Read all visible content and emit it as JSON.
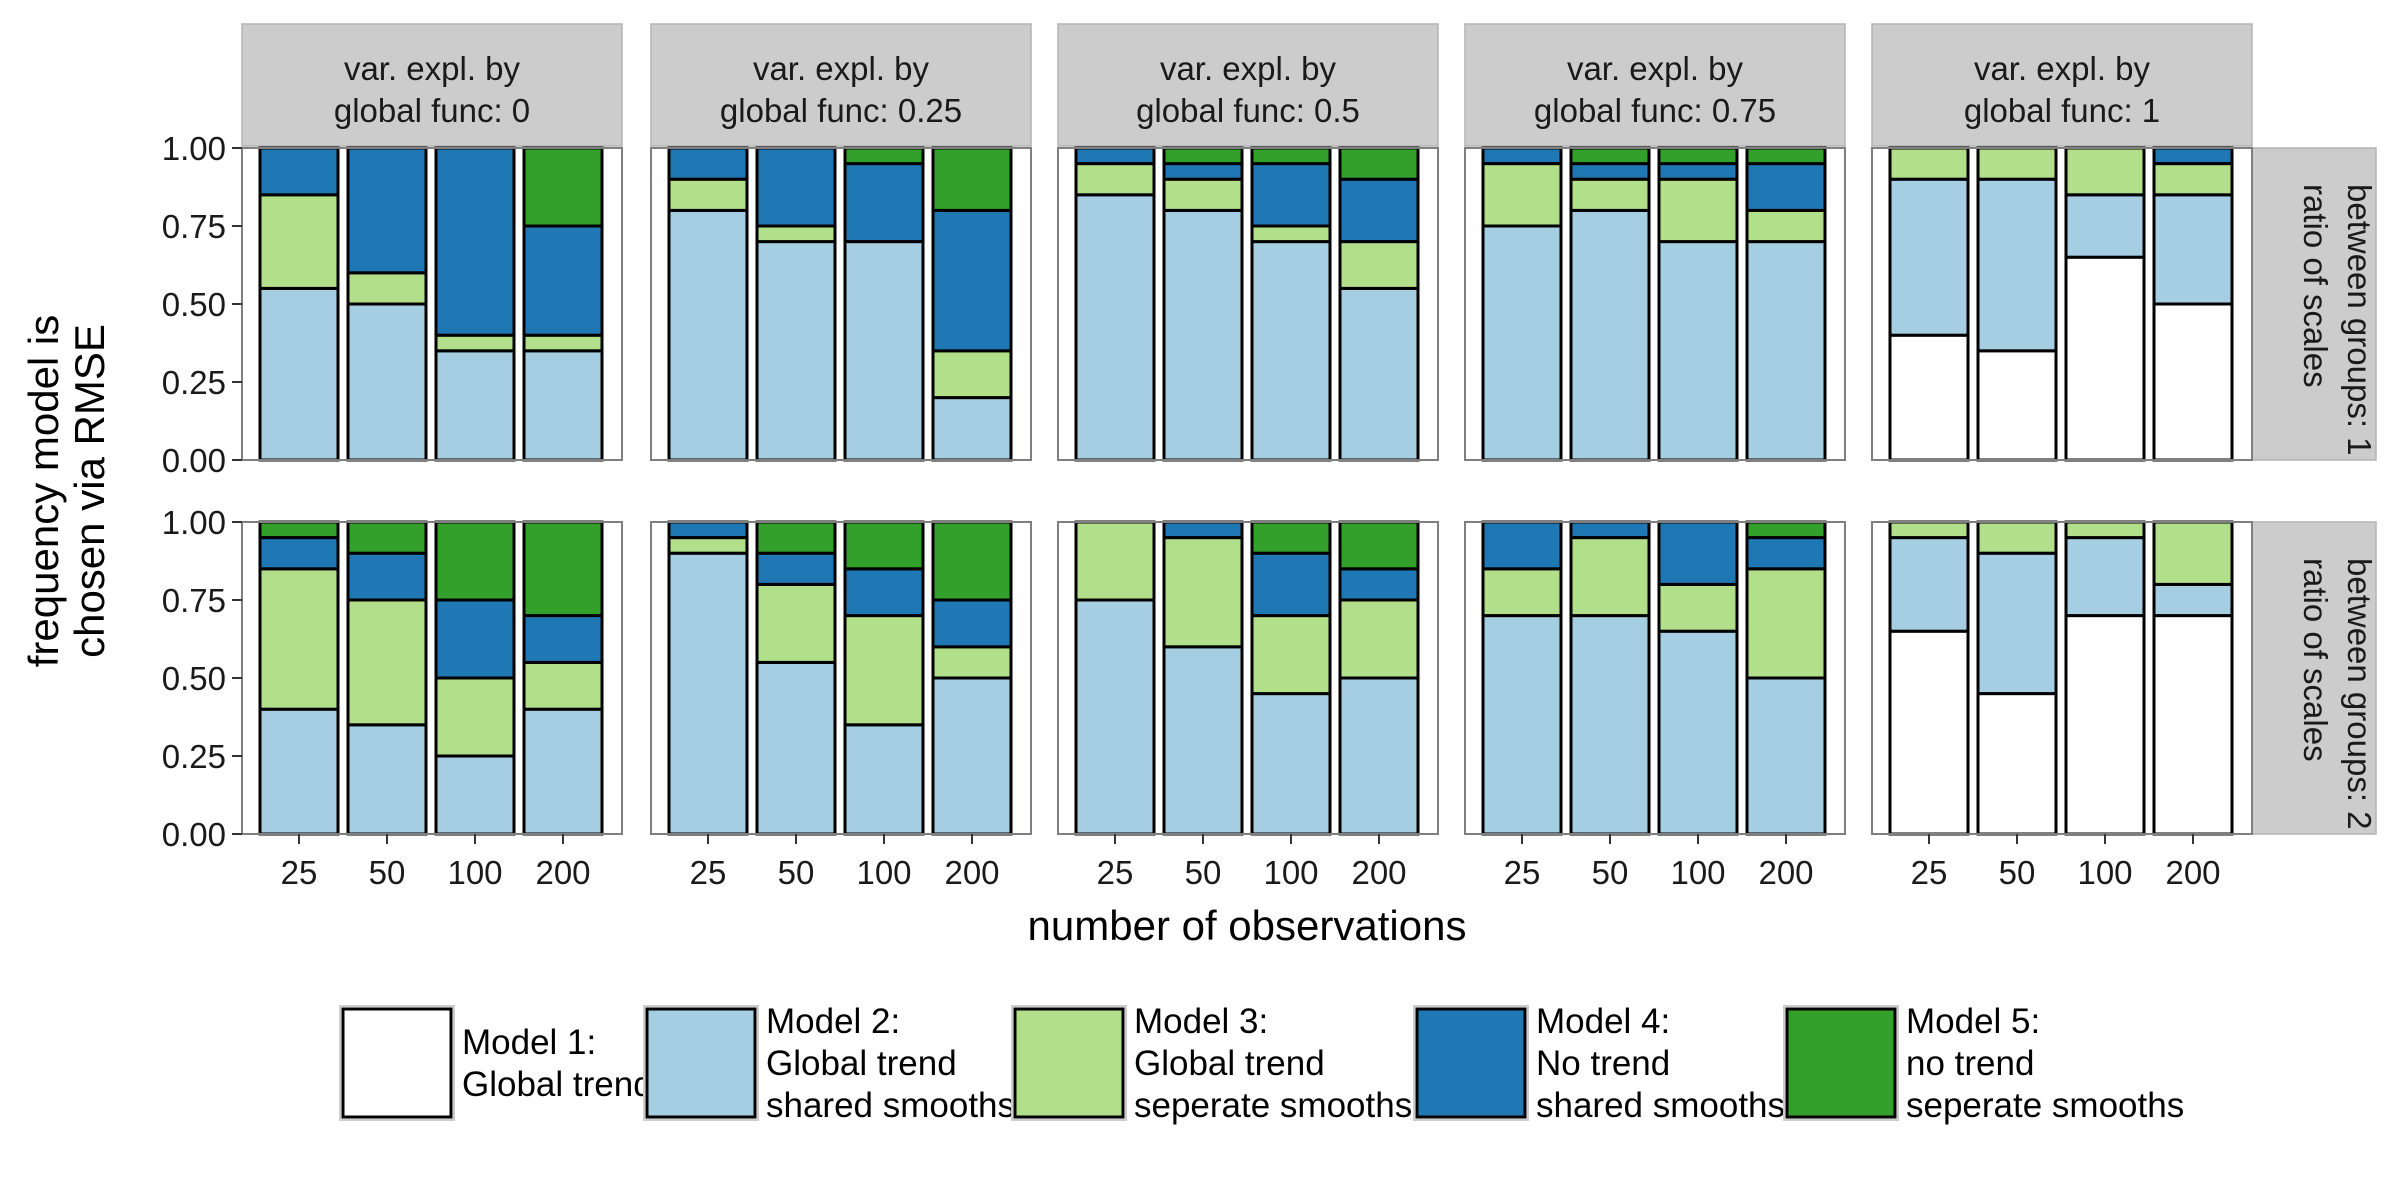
{
  "chart_data": {
    "type": "bar",
    "subtype": "stacked-facet-grid",
    "x_label": "number of observations",
    "y_label_lines": [
      "frequency model is",
      "chosen via RMSE"
    ],
    "categories": [
      "25",
      "50",
      "100",
      "200"
    ],
    "y_ticks": [
      "0.00",
      "0.25",
      "0.50",
      "0.75",
      "1.00"
    ],
    "ylim": [
      0,
      1
    ],
    "grid": false,
    "legend_position": "bottom",
    "column_labels": [
      [
        "var. expl. by",
        "global func: 0"
      ],
      [
        "var. expl. by",
        "global func: 0.25"
      ],
      [
        "var. expl. by",
        "global func: 0.5"
      ],
      [
        "var. expl. by",
        "global func: 0.75"
      ],
      [
        "var. expl. by",
        "global func: 1"
      ]
    ],
    "row_labels": [
      [
        "ratio of scales",
        "between groups: 1"
      ],
      [
        "ratio of scales",
        "between groups: 2"
      ]
    ],
    "series": [
      {
        "name": "Model 1: Global trend",
        "legend_lines": [
          "Model 1:",
          "Global trend"
        ],
        "color": "#ffffff"
      },
      {
        "name": "Model 2: Global trend shared smooths",
        "legend_lines": [
          "Model 2:",
          "Global trend",
          "shared smooths"
        ],
        "color": "#a6cee3"
      },
      {
        "name": "Model 3: Global trend seperate smooths",
        "legend_lines": [
          "Model 3:",
          "Global trend",
          "seperate smooths"
        ],
        "color": "#b2df8a"
      },
      {
        "name": "Model 4: No trend shared smooths",
        "legend_lines": [
          "Model 4:",
          "No trend",
          "shared smooths"
        ],
        "color": "#1f78b4"
      },
      {
        "name": "Model 5: no trend seperate smooths",
        "legend_lines": [
          "Model 5:",
          "no trend",
          "seperate smooths"
        ],
        "color": "#33a02c"
      }
    ],
    "panels": [
      [
        [
          [
            0,
            0.55,
            0.3,
            0.15,
            0
          ],
          [
            0,
            0.5,
            0.1,
            0.4,
            0
          ],
          [
            0,
            0.35,
            0.05,
            0.6,
            0
          ],
          [
            0,
            0.35,
            0.05,
            0.35,
            0.25
          ]
        ],
        [
          [
            0,
            0.8,
            0.1,
            0.1,
            0
          ],
          [
            0,
            0.7,
            0.05,
            0.25,
            0
          ],
          [
            0,
            0.7,
            0,
            0.25,
            0.05
          ],
          [
            0,
            0.2,
            0.15,
            0.45,
            0.2
          ]
        ],
        [
          [
            0,
            0.85,
            0.1,
            0.05,
            0
          ],
          [
            0,
            0.8,
            0.1,
            0.05,
            0.05
          ],
          [
            0,
            0.7,
            0.05,
            0.2,
            0.05
          ],
          [
            0,
            0.55,
            0.15,
            0.2,
            0.1
          ]
        ],
        [
          [
            0,
            0.75,
            0.2,
            0.05,
            0
          ],
          [
            0,
            0.8,
            0.1,
            0.05,
            0.05
          ],
          [
            0,
            0.7,
            0.2,
            0.05,
            0.05
          ],
          [
            0,
            0.7,
            0.1,
            0.15,
            0.05
          ]
        ],
        [
          [
            0.4,
            0.5,
            0.1,
            0,
            0
          ],
          [
            0.35,
            0.55,
            0.1,
            0,
            0
          ],
          [
            0.65,
            0.2,
            0.15,
            0,
            0
          ],
          [
            0.5,
            0.35,
            0.1,
            0.05,
            0
          ]
        ]
      ],
      [
        [
          [
            0,
            0.4,
            0.45,
            0.1,
            0.05
          ],
          [
            0,
            0.35,
            0.4,
            0.15,
            0.1
          ],
          [
            0,
            0.25,
            0.25,
            0.25,
            0.25
          ],
          [
            0,
            0.4,
            0.15,
            0.15,
            0.3
          ]
        ],
        [
          [
            0,
            0.9,
            0.05,
            0.05,
            0
          ],
          [
            0,
            0.55,
            0.25,
            0.1,
            0.1
          ],
          [
            0,
            0.35,
            0.35,
            0.15,
            0.15
          ],
          [
            0,
            0.5,
            0.1,
            0.15,
            0.25
          ]
        ],
        [
          [
            0,
            0.75,
            0.25,
            0,
            0
          ],
          [
            0,
            0.6,
            0.35,
            0.05,
            0
          ],
          [
            0,
            0.45,
            0.25,
            0.2,
            0.1
          ],
          [
            0,
            0.5,
            0.25,
            0.1,
            0.15
          ]
        ],
        [
          [
            0,
            0.7,
            0.15,
            0.15,
            0
          ],
          [
            0,
            0.7,
            0.25,
            0.05,
            0
          ],
          [
            0,
            0.65,
            0.15,
            0.2,
            0
          ],
          [
            0,
            0.5,
            0.35,
            0.1,
            0.05
          ]
        ],
        [
          [
            0.65,
            0.3,
            0.05,
            0,
            0
          ],
          [
            0.45,
            0.45,
            0.1,
            0,
            0
          ],
          [
            0.7,
            0.25,
            0.05,
            0,
            0
          ],
          [
            0.7,
            0.1,
            0.2,
            0,
            0
          ]
        ]
      ]
    ]
  }
}
